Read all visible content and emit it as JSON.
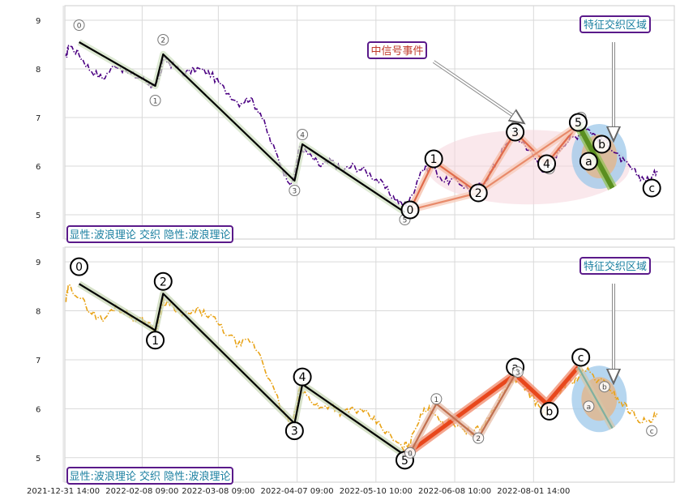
{
  "chart_data": [
    {
      "type": "line",
      "panel": "top",
      "ylim": [
        4.5,
        9.3
      ],
      "yticks": [
        "5",
        "6",
        "7",
        "8",
        "9"
      ],
      "grid": true,
      "price_color": "#4b0082",
      "xlim": [
        "2021-12-31 14:00",
        "2022-08-20 14:00"
      ],
      "price_anchors": [
        [
          "2022-01-01",
          8.2
        ],
        [
          "2022-01-02",
          8.5
        ],
        [
          "2022-01-06",
          8.3
        ],
        [
          "2022-01-10",
          8.0
        ],
        [
          "2022-01-15",
          7.8
        ],
        [
          "2022-01-20",
          8.1
        ],
        [
          "2022-01-25",
          7.9
        ],
        [
          "2022-01-30",
          7.8
        ],
        [
          "2022-02-02",
          7.7
        ],
        [
          "2022-02-04",
          7.6
        ],
        [
          "2022-02-06",
          7.9
        ],
        [
          "2022-02-07",
          8.2
        ],
        [
          "2022-02-10",
          8.1
        ],
        [
          "2022-02-15",
          7.9
        ],
        [
          "2022-02-20",
          8.0
        ],
        [
          "2022-02-25",
          7.9
        ],
        [
          "2022-03-02",
          7.6
        ],
        [
          "2022-03-08",
          7.3
        ],
        [
          "2022-03-12",
          7.4
        ],
        [
          "2022-03-16",
          7.1
        ],
        [
          "2022-03-20",
          6.5
        ],
        [
          "2022-03-25",
          5.9
        ],
        [
          "2022-03-28",
          5.6
        ],
        [
          "2022-03-31",
          6.4
        ],
        [
          "2022-04-04",
          6.2
        ],
        [
          "2022-04-08",
          6.0
        ],
        [
          "2022-04-12",
          6.1
        ],
        [
          "2022-04-16",
          5.9
        ],
        [
          "2022-04-20",
          6.0
        ],
        [
          "2022-04-25",
          5.9
        ],
        [
          "2022-04-30",
          5.7
        ],
        [
          "2022-05-05",
          5.4
        ],
        [
          "2022-05-09",
          5.2
        ],
        [
          "2022-05-12",
          5.3
        ],
        [
          "2022-05-16",
          5.9
        ],
        [
          "2022-05-20",
          6.0
        ],
        [
          "2022-05-25",
          5.7
        ],
        [
          "2022-05-30",
          5.7
        ],
        [
          "2022-06-04",
          5.5
        ],
        [
          "2022-06-08",
          5.6
        ],
        [
          "2022-06-12",
          5.9
        ],
        [
          "2022-06-16",
          6.3
        ],
        [
          "2022-06-20",
          6.6
        ],
        [
          "2022-06-24",
          6.5
        ],
        [
          "2022-06-28",
          6.2
        ],
        [
          "2022-07-02",
          5.9
        ],
        [
          "2022-07-06",
          6.2
        ],
        [
          "2022-07-10",
          6.5
        ],
        [
          "2022-07-14",
          6.6
        ],
        [
          "2022-07-18",
          6.8
        ],
        [
          "2022-07-22",
          6.6
        ],
        [
          "2022-07-26",
          6.5
        ],
        [
          "2022-07-30",
          6.2
        ],
        [
          "2022-08-03",
          6.0
        ],
        [
          "2022-08-07",
          5.8
        ],
        [
          "2022-08-11",
          5.7
        ],
        [
          "2022-08-14",
          5.9
        ]
      ],
      "wave_lines": [
        {
          "color": "#000000",
          "halo": "#cfe0c0",
          "points": [
            [
              "2022-01-06",
              8.55
            ],
            [
              "2022-02-04",
              7.65
            ],
            [
              "2022-02-07",
              8.3
            ],
            [
              "2022-03-29",
              5.7
            ],
            [
              "2022-04-01",
              6.45
            ],
            [
              "2022-05-10",
              5.05
            ]
          ]
        },
        {
          "color": "#e06a4a",
          "halo": "#f3b8a0",
          "points": [
            [
              "2022-05-12",
              5.1
            ],
            [
              "2022-05-21",
              6.1
            ],
            [
              "2022-06-07",
              5.45
            ],
            [
              "2022-06-21",
              6.7
            ],
            [
              "2022-07-03",
              6.05
            ],
            [
              "2022-07-15",
              6.85
            ]
          ]
        },
        {
          "color": "#e88a6a",
          "halo": "#f6c9b7",
          "points": [
            [
              "2022-05-12",
              5.1
            ],
            [
              "2022-06-07",
              5.45
            ],
            [
              "2022-07-15",
              6.85
            ]
          ]
        },
        {
          "color": "#5a8f20",
          "halo": "#90c050",
          "points": [
            [
              "2022-07-15",
              6.85
            ],
            [
              "2022-07-28",
              5.55
            ]
          ]
        }
      ],
      "labels": [
        {
          "text": "0",
          "date": "2022-01-06",
          "y": 8.9,
          "size": "small"
        },
        {
          "text": "1",
          "date": "2022-02-04",
          "y": 7.35,
          "size": "small"
        },
        {
          "text": "2",
          "date": "2022-02-07",
          "y": 8.6,
          "size": "small"
        },
        {
          "text": "3",
          "date": "2022-03-29",
          "y": 5.5,
          "size": "small"
        },
        {
          "text": "4",
          "date": "2022-04-01",
          "y": 6.65,
          "size": "small"
        },
        {
          "text": "5",
          "date": "2022-05-10",
          "y": 4.9,
          "size": "small"
        },
        {
          "text": "0",
          "date": "2022-05-12",
          "y": 5.1,
          "size": "large"
        },
        {
          "text": "1",
          "date": "2022-05-21",
          "y": 6.15,
          "size": "large"
        },
        {
          "text": "2",
          "date": "2022-06-07",
          "y": 5.45,
          "size": "large"
        },
        {
          "text": "a",
          "date": "2022-06-21",
          "y": 6.8,
          "size": "small"
        },
        {
          "text": "3",
          "date": "2022-06-21",
          "y": 6.7,
          "size": "large"
        },
        {
          "text": "b",
          "date": "2022-07-04",
          "y": 5.95,
          "size": "small"
        },
        {
          "text": "4",
          "date": "2022-07-03",
          "y": 6.05,
          "size": "large"
        },
        {
          "text": "c",
          "date": "2022-07-16",
          "y": 7.0,
          "size": "small"
        },
        {
          "text": "5",
          "date": "2022-07-15",
          "y": 6.9,
          "size": "large"
        },
        {
          "text": "a",
          "date": "2022-07-19",
          "y": 6.1,
          "size": "large"
        },
        {
          "text": "b",
          "date": "2022-07-24",
          "y": 6.45,
          "size": "large"
        },
        {
          "text": "c",
          "date": "2022-08-12",
          "y": 5.55,
          "size": "large"
        }
      ],
      "annotations": {
        "signal_event": "中信号事件",
        "feature_zone": "特征交织区域",
        "legend": "显性:波浪理论 交织 隐性:波浪理论"
      }
    },
    {
      "type": "line",
      "panel": "bottom",
      "ylim": [
        4.5,
        9.3
      ],
      "yticks": [
        "5",
        "6",
        "7",
        "8",
        "9"
      ],
      "grid": true,
      "price_color": "#e8a317",
      "xlim": [
        "2021-12-31 14:00",
        "2022-08-20 14:00"
      ],
      "xtick_labels": [
        "2021-12-31 14:00",
        "2022-02-08 09:00",
        "2022-03-08 09:00",
        "2022-04-07 09:00",
        "2022-05-10 10:00",
        "2022-06-08 10:00",
        "2022-08-01 14:00"
      ],
      "xtick_dates": [
        "2021-12-31",
        "2022-01-30",
        "2022-02-28",
        "2022-03-30",
        "2022-04-29",
        "2022-05-29",
        "2022-06-28"
      ],
      "wave_lines": [
        {
          "color": "#000000",
          "halo": "#c5d4b0",
          "points": [
            [
              "2022-01-06",
              8.55
            ],
            [
              "2022-02-04",
              7.6
            ],
            [
              "2022-02-07",
              8.35
            ],
            [
              "2022-03-29",
              5.7
            ],
            [
              "2022-04-01",
              6.5
            ],
            [
              "2022-05-10",
              5.05
            ]
          ]
        },
        {
          "color": "#e8471c",
          "halo": "#f08060",
          "points": [
            [
              "2022-05-10",
              5.05
            ],
            [
              "2022-06-21",
              6.7
            ],
            [
              "2022-07-03",
              6.1
            ],
            [
              "2022-07-15",
              6.85
            ]
          ]
        },
        {
          "color": "#c07050",
          "halo": "#e6b9a4",
          "points": [
            [
              "2022-05-12",
              5.1
            ],
            [
              "2022-05-22",
              6.1
            ],
            [
              "2022-06-07",
              5.4
            ],
            [
              "2022-06-21",
              6.7
            ]
          ]
        },
        {
          "color": "#7fb0a0",
          "halo": "#d6c6a6",
          "points": [
            [
              "2022-07-15",
              6.85
            ],
            [
              "2022-07-28",
              5.6
            ]
          ]
        }
      ],
      "labels": [
        {
          "text": "0",
          "date": "2022-01-06",
          "y": 8.9,
          "size": "large"
        },
        {
          "text": "1",
          "date": "2022-02-04",
          "y": 7.4,
          "size": "large"
        },
        {
          "text": "2",
          "date": "2022-02-07",
          "y": 8.6,
          "size": "large"
        },
        {
          "text": "3",
          "date": "2022-03-29",
          "y": 5.55,
          "size": "large"
        },
        {
          "text": "4",
          "date": "2022-04-01",
          "y": 6.65,
          "size": "large"
        },
        {
          "text": "5",
          "date": "2022-05-10",
          "y": 4.95,
          "size": "large"
        },
        {
          "text": "0",
          "date": "2022-05-12",
          "y": 5.1,
          "size": "small"
        },
        {
          "text": "1",
          "date": "2022-05-22",
          "y": 6.2,
          "size": "small"
        },
        {
          "text": "2",
          "date": "2022-06-07",
          "y": 5.4,
          "size": "small"
        },
        {
          "text": "a",
          "date": "2022-06-21",
          "y": 6.85,
          "size": "large"
        },
        {
          "text": "3",
          "date": "2022-06-22",
          "y": 6.75,
          "size": "small"
        },
        {
          "text": "b",
          "date": "2022-07-04",
          "y": 5.95,
          "size": "large"
        },
        {
          "text": "c",
          "date": "2022-07-16",
          "y": 7.05,
          "size": "large"
        },
        {
          "text": "a",
          "date": "2022-07-19",
          "y": 6.05,
          "size": "small"
        },
        {
          "text": "b",
          "date": "2022-07-25",
          "y": 6.45,
          "size": "small"
        },
        {
          "text": "c",
          "date": "2022-08-12",
          "y": 5.55,
          "size": "small"
        }
      ],
      "annotations": {
        "feature_zone": "特征交织区域",
        "legend": "显性:波浪理论 交织 隐性:波浪理论"
      }
    }
  ]
}
